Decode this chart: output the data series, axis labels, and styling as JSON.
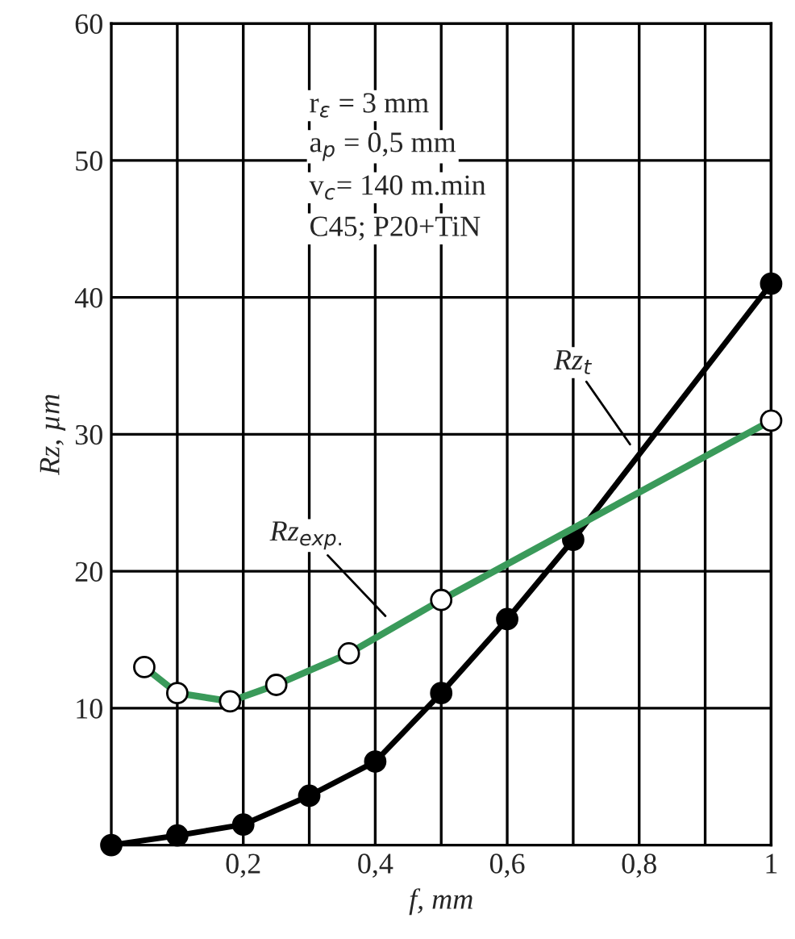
{
  "chart_data": {
    "type": "line",
    "xlabel": "f, mm",
    "ylabel": "Rz, µm",
    "xlim": [
      0,
      1
    ],
    "ylim": [
      0,
      60
    ],
    "xticks": [
      {
        "value": 0.1,
        "label": null
      },
      {
        "value": 0.2,
        "label": "0,2"
      },
      {
        "value": 0.3,
        "label": null
      },
      {
        "value": 0.4,
        "label": "0,4"
      },
      {
        "value": 0.5,
        "label": null
      },
      {
        "value": 0.6,
        "label": "0,6"
      },
      {
        "value": 0.7,
        "label": null
      },
      {
        "value": 0.8,
        "label": "0,8"
      },
      {
        "value": 0.9,
        "label": null
      },
      1
    ],
    "yticks": [
      10,
      20,
      30,
      40,
      50,
      60
    ],
    "grid": true,
    "marker": "circle",
    "line_style": "solid",
    "series": [
      {
        "color": "#000000",
        "x": [
          0,
          0.1,
          0.2,
          0.3,
          0.4,
          0.5,
          0.6,
          0.7,
          1.0
        ],
        "values": [
          0,
          0.7,
          1.5,
          3.6,
          6.1,
          11.1,
          16.5,
          22.3,
          41
        ]
      },
      {
        "color": "#3a9a5a",
        "x": [
          0.05,
          0.1,
          0.18,
          0.25,
          0.36,
          0.5,
          1.0
        ],
        "values": [
          13,
          11.1,
          10.5,
          11.7,
          14,
          17.9,
          31
        ]
      }
    ],
    "annotations": [
      "r$_{ε}$ = 3 mm",
      "a$_{p}$ = 0,5 mm",
      "v$_{c}$= 140 m.min",
      "C45; P20+TiN",
      {
        "text": "Rz$_{t}$",
        "x": 0.79,
        "y": 29
      },
      {
        "text": "Rz$_{exp.}$",
        "x": 0.42,
        "y": 16.5
      }
    ]
  }
}
